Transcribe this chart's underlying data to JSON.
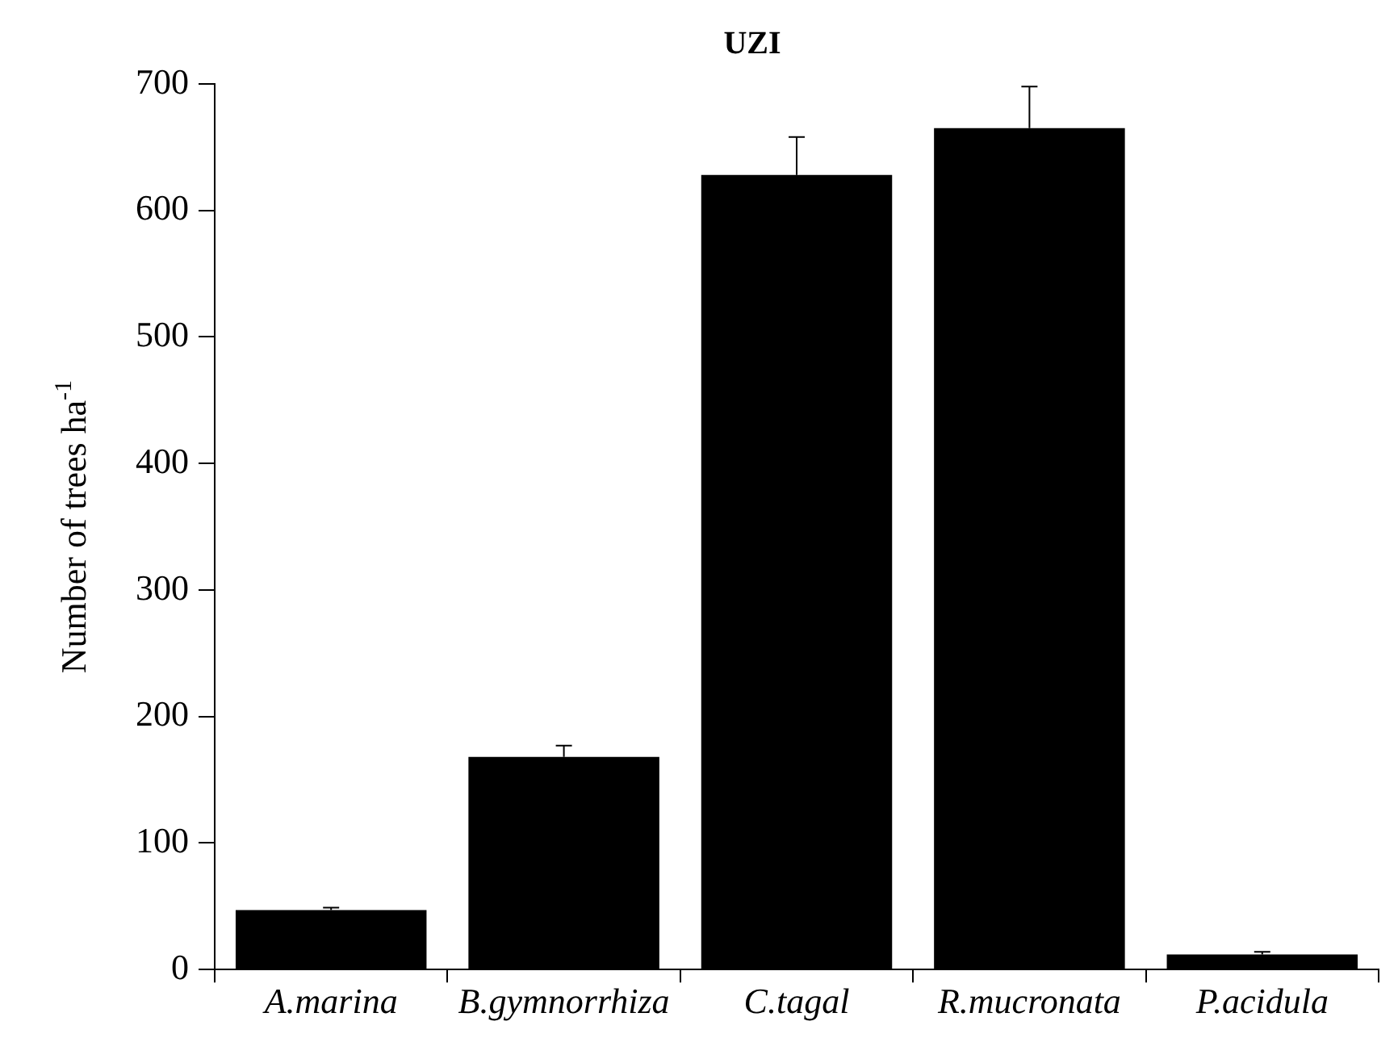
{
  "chart_data": {
    "type": "bar",
    "title": "UZI",
    "ylabel": "Number of trees ha$^{-1}$",
    "categories": [
      "A.marina",
      "B.gymnorrhiza",
      "C.tagal",
      "R.mucronata",
      "P.acidula"
    ],
    "values": [
      47,
      168,
      628,
      665,
      12
    ],
    "errors": [
      [
        47,
        49
      ],
      [
        168,
        177
      ],
      [
        628,
        658
      ],
      [
        665,
        698
      ],
      [
        12,
        14
      ]
    ],
    "color": "#000000",
    "ylim": [
      0,
      700
    ],
    "yticks": [
      0,
      100,
      200,
      300,
      400,
      500,
      600,
      700
    ],
    "grid": false,
    "legend": false
  }
}
